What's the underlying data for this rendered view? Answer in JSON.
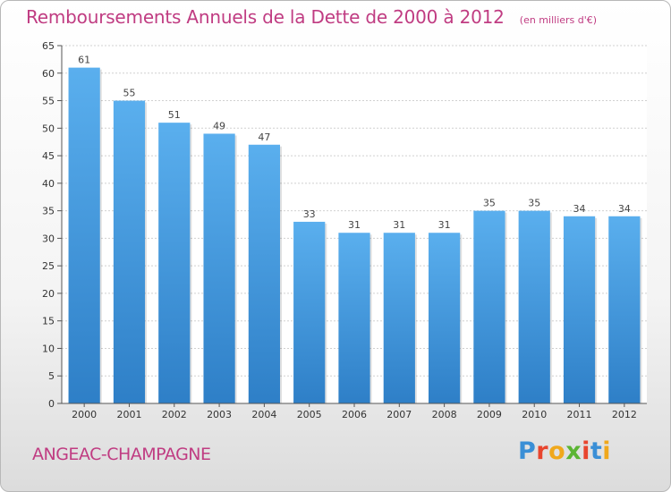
{
  "header": {
    "title": "Remboursements Annuels de la Dette de 2000 à 2012",
    "unit": "(en milliers d'€)"
  },
  "footer": {
    "city": "ANGEAC-CHAMPAGNE",
    "brand": "Proxiti"
  },
  "colors": {
    "bar_top": "#5aafee",
    "bar_bottom": "#2e7fc7",
    "title": "#c03c82",
    "grid": "#d0d0d0"
  },
  "chart_data": {
    "type": "bar",
    "title": "Remboursements Annuels de la Dette de 2000 à 2012",
    "xlabel": "",
    "ylabel": "",
    "categories": [
      "2000",
      "2001",
      "2002",
      "2003",
      "2004",
      "2005",
      "2006",
      "2007",
      "2008",
      "2009",
      "2010",
      "2011",
      "2012"
    ],
    "values": [
      61,
      55,
      51,
      49,
      47,
      33,
      31,
      31,
      31,
      35,
      35,
      34,
      34
    ],
    "ylim": [
      0,
      65
    ],
    "yticks": [
      0,
      5,
      10,
      15,
      20,
      25,
      30,
      35,
      40,
      45,
      50,
      55,
      60,
      65
    ],
    "grid": true
  }
}
